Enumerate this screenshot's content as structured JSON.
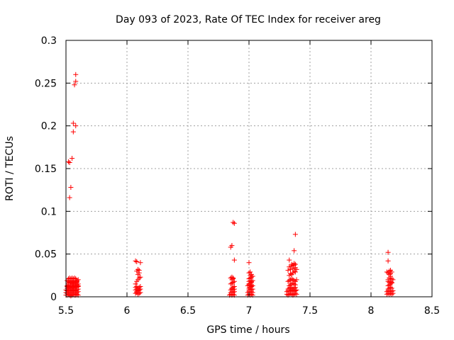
{
  "chart_data": {
    "type": "scatter",
    "title": "Day 093 of 2023, Rate Of TEC Index for receiver areg",
    "xlabel": "GPS time / hours",
    "ylabel": "ROTI / TECUs",
    "xlim": [
      5.5,
      8.5
    ],
    "ylim": [
      0,
      0.3
    ],
    "x_ticks": [
      "5.5",
      "6",
      "6.5",
      "7",
      "7.5",
      "8",
      "8.5"
    ],
    "y_ticks": [
      "0",
      "0.05",
      "0.1",
      "0.15",
      "0.2",
      "0.25",
      "0.3"
    ],
    "grid": true,
    "marker": "+",
    "color": "#ff0000",
    "series": [
      {
        "x": [
          5.5,
          5.51,
          5.52,
          5.53,
          5.54,
          5.55,
          5.56,
          5.57,
          5.58,
          5.59,
          5.6,
          5.5,
          5.51,
          5.52,
          5.53,
          5.54,
          5.55,
          5.56,
          5.57,
          5.58,
          5.59,
          5.6,
          5.5,
          5.51,
          5.52,
          5.53,
          5.54,
          5.55,
          5.56,
          5.57,
          5.58,
          5.59,
          5.6,
          5.51,
          5.52,
          5.53,
          5.54,
          5.55,
          5.56,
          5.57,
          5.58,
          5.59,
          5.51,
          5.52,
          5.55,
          5.56,
          5.57,
          5.58,
          5.59,
          5.6,
          5.52,
          5.53,
          5.54,
          5.55,
          5.56,
          5.57,
          5.58,
          5.59,
          5.51,
          5.52,
          5.53,
          5.54,
          5.55,
          5.56,
          5.57,
          5.58,
          5.59,
          5.6,
          5.52,
          5.54,
          5.56,
          5.58,
          5.53,
          5.55,
          5.57,
          5.51,
          5.52,
          5.53,
          5.54,
          5.55,
          5.56,
          5.57,
          5.58,
          5.59,
          5.6,
          5.52,
          5.56,
          5.58,
          5.55,
          5.56,
          5.57,
          5.58,
          5.53,
          5.54,
          5.53,
          5.58,
          5.59,
          5.6,
          5.59,
          6.07,
          6.08,
          6.09,
          6.1,
          6.11,
          6.07,
          6.08,
          6.09,
          6.1,
          6.11,
          6.07,
          6.08,
          6.09,
          6.1,
          6.11,
          6.08,
          6.09,
          6.1,
          6.07,
          6.08,
          6.09,
          6.1,
          6.11,
          6.09,
          6.1,
          6.08,
          6.09,
          6.1,
          6.11,
          6.07,
          6.08,
          6.84,
          6.85,
          6.86,
          6.87,
          6.88,
          6.85,
          6.86,
          6.87,
          6.88,
          6.85,
          6.86,
          6.87,
          6.88,
          6.86,
          6.87,
          6.88,
          6.85,
          6.86,
          6.87,
          6.88,
          6.86,
          6.87,
          6.85,
          6.86,
          6.87,
          6.88,
          6.85,
          6.86,
          6.87,
          6.88,
          6.99,
          7.0,
          7.01,
          7.02,
          7.03,
          6.99,
          7.0,
          7.01,
          7.02,
          7.03,
          7.0,
          7.01,
          7.02,
          7.03,
          7.0,
          7.01,
          7.02,
          6.99,
          7.0,
          7.01,
          7.02,
          7.03,
          7.0,
          7.01,
          7.02,
          7.0,
          7.01,
          7.02,
          7.03,
          7.0,
          7.01,
          7.02,
          7.03,
          7.01,
          7.02,
          7.0,
          7.01,
          7.0,
          7.31,
          7.32,
          7.33,
          7.34,
          7.35,
          7.36,
          7.37,
          7.38,
          7.39,
          7.31,
          7.32,
          7.33,
          7.34,
          7.35,
          7.36,
          7.37,
          7.38,
          7.39,
          7.32,
          7.33,
          7.34,
          7.35,
          7.36,
          7.37,
          7.38,
          7.33,
          7.34,
          7.35,
          7.36,
          7.37,
          7.38,
          7.32,
          7.33,
          7.34,
          7.35,
          7.36,
          7.37,
          7.38,
          7.39,
          7.33,
          7.34,
          7.35,
          7.36,
          7.37,
          7.38,
          7.32,
          7.34,
          7.36,
          7.38,
          7.33,
          7.35,
          7.37,
          7.35,
          7.36,
          7.37,
          7.38,
          7.33,
          7.37,
          7.38,
          7.39,
          8.13,
          8.14,
          8.15,
          8.16,
          8.17,
          8.18,
          8.13,
          8.14,
          8.15,
          8.16,
          8.17,
          8.18,
          8.14,
          8.15,
          8.16,
          8.17,
          8.14,
          8.15,
          8.16,
          8.17,
          8.14,
          8.15,
          8.16,
          8.17,
          8.14,
          8.15,
          8.16,
          8.17,
          8.18,
          8.15,
          8.16,
          8.13,
          8.14,
          8.15,
          8.16,
          8.17,
          8.14,
          8.14
        ],
        "y": [
          0.002,
          0.002,
          0.003,
          0.002,
          0.001,
          0.002,
          0.003,
          0.002,
          0.002,
          0.003,
          0.002,
          0.005,
          0.004,
          0.006,
          0.005,
          0.004,
          0.005,
          0.006,
          0.005,
          0.004,
          0.005,
          0.006,
          0.008,
          0.007,
          0.009,
          0.008,
          0.007,
          0.008,
          0.009,
          0.008,
          0.007,
          0.008,
          0.009,
          0.01,
          0.011,
          0.012,
          0.01,
          0.011,
          0.012,
          0.01,
          0.011,
          0.012,
          0.013,
          0.014,
          0.015,
          0.014,
          0.013,
          0.015,
          0.014,
          0.013,
          0.016,
          0.017,
          0.016,
          0.017,
          0.016,
          0.017,
          0.016,
          0.017,
          0.019,
          0.018,
          0.019,
          0.018,
          0.019,
          0.018,
          0.019,
          0.018,
          0.019,
          0.02,
          0.021,
          0.021,
          0.021,
          0.021,
          0.022,
          0.022,
          0.022,
          0.012,
          0.013,
          0.011,
          0.012,
          0.013,
          0.011,
          0.012,
          0.013,
          0.011,
          0.012,
          0.158,
          0.203,
          0.2,
          0.162,
          0.193,
          0.248,
          0.252,
          0.157,
          0.128,
          0.116,
          0.26,
          0.018,
          0.015,
          0.005,
          0.004,
          0.005,
          0.003,
          0.004,
          0.005,
          0.008,
          0.009,
          0.007,
          0.008,
          0.009,
          0.011,
          0.012,
          0.01,
          0.011,
          0.012,
          0.006,
          0.007,
          0.008,
          0.015,
          0.018,
          0.02,
          0.022,
          0.023,
          0.026,
          0.028,
          0.03,
          0.032,
          0.031,
          0.04,
          0.042,
          0.041,
          0.002,
          0.003,
          0.002,
          0.003,
          0.002,
          0.005,
          0.006,
          0.005,
          0.006,
          0.008,
          0.009,
          0.008,
          0.009,
          0.01,
          0.011,
          0.012,
          0.015,
          0.016,
          0.017,
          0.018,
          0.02,
          0.021,
          0.022,
          0.023,
          0.022,
          0.043,
          0.058,
          0.06,
          0.087,
          0.086,
          0.002,
          0.003,
          0.002,
          0.003,
          0.002,
          0.005,
          0.006,
          0.005,
          0.006,
          0.005,
          0.008,
          0.009,
          0.008,
          0.009,
          0.01,
          0.011,
          0.012,
          0.013,
          0.014,
          0.013,
          0.014,
          0.013,
          0.015,
          0.016,
          0.017,
          0.018,
          0.019,
          0.018,
          0.019,
          0.021,
          0.022,
          0.023,
          0.024,
          0.025,
          0.026,
          0.028,
          0.029,
          0.04,
          0.003,
          0.002,
          0.003,
          0.004,
          0.003,
          0.002,
          0.003,
          0.004,
          0.003,
          0.006,
          0.007,
          0.006,
          0.007,
          0.008,
          0.007,
          0.006,
          0.007,
          0.008,
          0.009,
          0.01,
          0.011,
          0.01,
          0.009,
          0.01,
          0.011,
          0.013,
          0.014,
          0.015,
          0.016,
          0.015,
          0.014,
          0.018,
          0.019,
          0.02,
          0.021,
          0.02,
          0.019,
          0.018,
          0.02,
          0.025,
          0.027,
          0.026,
          0.028,
          0.03,
          0.029,
          0.031,
          0.032,
          0.033,
          0.034,
          0.035,
          0.036,
          0.037,
          0.038,
          0.037,
          0.039,
          0.038,
          0.043,
          0.054,
          0.073,
          0.032,
          0.003,
          0.004,
          0.003,
          0.004,
          0.003,
          0.004,
          0.006,
          0.007,
          0.006,
          0.007,
          0.006,
          0.007,
          0.009,
          0.01,
          0.011,
          0.01,
          0.013,
          0.014,
          0.015,
          0.016,
          0.018,
          0.017,
          0.018,
          0.017,
          0.02,
          0.022,
          0.024,
          0.021,
          0.02,
          0.026,
          0.027,
          0.029,
          0.028,
          0.03,
          0.031,
          0.029,
          0.042,
          0.052
        ]
      }
    ]
  }
}
